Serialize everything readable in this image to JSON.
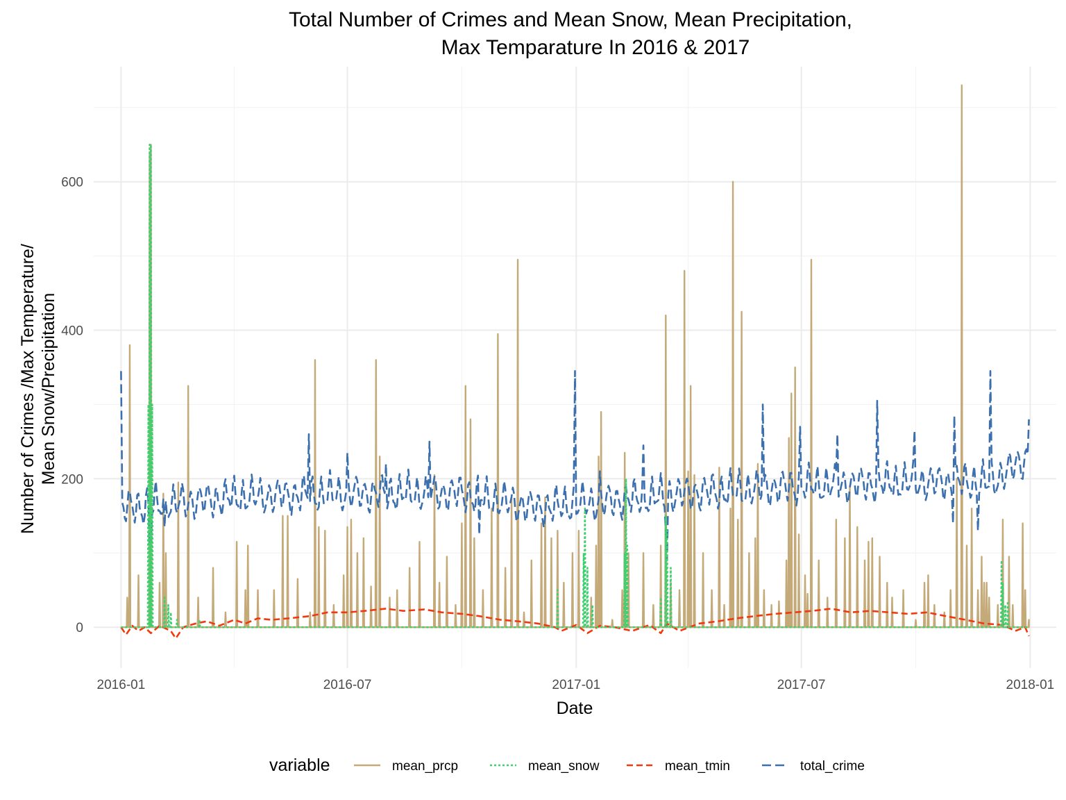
{
  "chart_data": {
    "type": "line",
    "title": [
      "Total Number of Crimes and Mean Snow, Mean Precipitation,",
      "Max Temparature In 2016 & 2017"
    ],
    "xlabel": "Date",
    "ylabel": [
      "Number of Crimes /Max Temperature/",
      "Mean Snow/Precipitation"
    ],
    "x_range": [
      "2015-12-10",
      "2018-01-22"
    ],
    "ylim": [
      -55,
      755
    ],
    "x_ticks": [
      {
        "date": "2016-01-01",
        "label": "2016-01"
      },
      {
        "date": "2016-07-01",
        "label": "2016-07"
      },
      {
        "date": "2017-01-01",
        "label": "2017-01"
      },
      {
        "date": "2017-07-01",
        "label": "2017-07"
      },
      {
        "date": "2018-01-01",
        "label": "2018-01"
      }
    ],
    "x_minor_ticks": [
      "2016-04-01",
      "2016-10-01",
      "2017-04-01",
      "2017-10-01"
    ],
    "y_ticks": [
      0,
      200,
      400,
      600
    ],
    "y_minor_ticks": [
      100,
      300,
      500,
      700
    ],
    "grid": true,
    "legend": {
      "title": "variable",
      "position": "bottom"
    },
    "series": [
      {
        "name": "mean_prcp",
        "color": "#c4aa78",
        "dash": "solid",
        "baseline": 0,
        "x_start": "2016-01-01",
        "x_end": "2017-12-31",
        "peaks": [
          [
            "2016-01-06",
            40
          ],
          [
            "2016-01-08",
            380
          ],
          [
            "2016-01-15",
            70
          ],
          [
            "2016-01-24",
            640
          ],
          [
            "2016-01-25",
            650
          ],
          [
            "2016-02-01",
            60
          ],
          [
            "2016-02-04",
            180
          ],
          [
            "2016-02-06",
            100
          ],
          [
            "2016-02-16",
            195
          ],
          [
            "2016-02-24",
            325
          ],
          [
            "2016-03-03",
            40
          ],
          [
            "2016-03-15",
            80
          ],
          [
            "2016-03-25",
            20
          ],
          [
            "2016-04-03",
            115
          ],
          [
            "2016-04-10",
            50
          ],
          [
            "2016-04-12",
            110
          ],
          [
            "2016-04-20",
            50
          ],
          [
            "2016-05-03",
            50
          ],
          [
            "2016-05-10",
            150
          ],
          [
            "2016-05-14",
            150
          ],
          [
            "2016-05-22",
            65
          ],
          [
            "2016-06-01",
            20
          ],
          [
            "2016-06-05",
            360
          ],
          [
            "2016-06-08",
            135
          ],
          [
            "2016-06-13",
            130
          ],
          [
            "2016-06-20",
            30
          ],
          [
            "2016-06-28",
            70
          ],
          [
            "2016-07-01",
            135
          ],
          [
            "2016-07-04",
            145
          ],
          [
            "2016-07-09",
            100
          ],
          [
            "2016-07-14",
            120
          ],
          [
            "2016-07-20",
            55
          ],
          [
            "2016-07-24",
            360
          ],
          [
            "2016-07-27",
            230
          ],
          [
            "2016-08-04",
            40
          ],
          [
            "2016-08-10",
            50
          ],
          [
            "2016-08-20",
            80
          ],
          [
            "2016-08-28",
            115
          ],
          [
            "2016-09-09",
            205
          ],
          [
            "2016-09-13",
            60
          ],
          [
            "2016-09-19",
            95
          ],
          [
            "2016-09-26",
            30
          ],
          [
            "2016-10-01",
            140
          ],
          [
            "2016-10-04",
            325
          ],
          [
            "2016-10-08",
            280
          ],
          [
            "2016-10-11",
            120
          ],
          [
            "2016-10-18",
            50
          ],
          [
            "2016-10-25",
            160
          ],
          [
            "2016-10-30",
            395
          ],
          [
            "2016-11-05",
            80
          ],
          [
            "2016-11-10",
            175
          ],
          [
            "2016-11-15",
            495
          ],
          [
            "2016-11-20",
            20
          ],
          [
            "2016-11-26",
            90
          ],
          [
            "2016-12-04",
            140
          ],
          [
            "2016-12-07",
            175
          ],
          [
            "2016-12-12",
            120
          ],
          [
            "2016-12-17",
            130
          ],
          [
            "2016-12-22",
            60
          ],
          [
            "2016-12-29",
            100
          ],
          [
            "2017-01-03",
            130
          ],
          [
            "2017-01-13",
            40
          ],
          [
            "2017-01-17",
            110
          ],
          [
            "2017-01-19",
            230
          ],
          [
            "2017-01-21",
            290
          ],
          [
            "2017-01-30",
            10
          ],
          [
            "2017-02-07",
            50
          ],
          [
            "2017-02-09",
            235
          ],
          [
            "2017-02-12",
            100
          ],
          [
            "2017-02-24",
            100
          ],
          [
            "2017-03-04",
            30
          ],
          [
            "2017-03-10",
            110
          ],
          [
            "2017-03-14",
            420
          ],
          [
            "2017-03-18",
            60
          ],
          [
            "2017-03-25",
            50
          ],
          [
            "2017-03-29",
            480
          ],
          [
            "2017-04-01",
            210
          ],
          [
            "2017-04-03",
            325
          ],
          [
            "2017-04-06",
            205
          ],
          [
            "2017-04-13",
            100
          ],
          [
            "2017-04-20",
            50
          ],
          [
            "2017-04-26",
            215
          ],
          [
            "2017-04-30",
            30
          ],
          [
            "2017-05-05",
            160
          ],
          [
            "2017-05-07",
            600
          ],
          [
            "2017-05-11",
            145
          ],
          [
            "2017-05-14",
            425
          ],
          [
            "2017-05-20",
            100
          ],
          [
            "2017-05-25",
            120
          ],
          [
            "2017-05-27",
            220
          ],
          [
            "2017-06-01",
            50
          ],
          [
            "2017-06-07",
            30
          ],
          [
            "2017-06-13",
            35
          ],
          [
            "2017-06-19",
            90
          ],
          [
            "2017-06-21",
            255
          ],
          [
            "2017-06-23",
            315
          ],
          [
            "2017-06-26",
            350
          ],
          [
            "2017-06-29",
            125
          ],
          [
            "2017-07-04",
            70
          ],
          [
            "2017-07-06",
            45
          ],
          [
            "2017-07-09",
            495
          ],
          [
            "2017-07-15",
            90
          ],
          [
            "2017-07-22",
            40
          ],
          [
            "2017-07-29",
            145
          ],
          [
            "2017-08-05",
            120
          ],
          [
            "2017-08-09",
            190
          ],
          [
            "2017-08-15",
            135
          ],
          [
            "2017-08-21",
            90
          ],
          [
            "2017-08-24",
            115
          ],
          [
            "2017-08-27",
            120
          ],
          [
            "2017-09-02",
            95
          ],
          [
            "2017-09-08",
            60
          ],
          [
            "2017-09-12",
            40
          ],
          [
            "2017-09-21",
            50
          ],
          [
            "2017-10-01",
            10
          ],
          [
            "2017-10-08",
            60
          ],
          [
            "2017-10-11",
            70
          ],
          [
            "2017-10-16",
            30
          ],
          [
            "2017-10-24",
            20
          ],
          [
            "2017-10-29",
            50
          ],
          [
            "2017-11-03",
            200
          ],
          [
            "2017-11-07",
            730
          ],
          [
            "2017-11-11",
            110
          ],
          [
            "2017-11-15",
            160
          ],
          [
            "2017-11-20",
            50
          ],
          [
            "2017-11-23",
            95
          ],
          [
            "2017-11-25",
            60
          ],
          [
            "2017-11-27",
            60
          ],
          [
            "2017-11-29",
            40
          ],
          [
            "2017-12-06",
            30
          ],
          [
            "2017-12-10",
            145
          ],
          [
            "2017-12-15",
            95
          ],
          [
            "2017-12-18",
            30
          ],
          [
            "2017-12-26",
            140
          ],
          [
            "2017-12-28",
            50
          ],
          [
            "2017-12-31",
            10
          ]
        ]
      },
      {
        "name": "mean_snow",
        "color": "#3fcf6f",
        "dash": "3,3",
        "baseline": 0,
        "x_start": "2016-01-01",
        "x_end": "2017-12-31",
        "peaks": [
          [
            "2016-01-23",
            300
          ],
          [
            "2016-01-24",
            650
          ],
          [
            "2016-01-25",
            650
          ],
          [
            "2016-01-26",
            300
          ],
          [
            "2016-02-05",
            40
          ],
          [
            "2016-02-08",
            30
          ],
          [
            "2016-02-10",
            20
          ],
          [
            "2016-02-15",
            10
          ],
          [
            "2016-03-04",
            10
          ],
          [
            "2016-12-17",
            50
          ],
          [
            "2017-01-07",
            100
          ],
          [
            "2017-01-08",
            160
          ],
          [
            "2017-01-10",
            80
          ],
          [
            "2017-01-14",
            30
          ],
          [
            "2017-02-09",
            100
          ],
          [
            "2017-02-10",
            200
          ],
          [
            "2017-02-11",
            110
          ],
          [
            "2017-03-10",
            40
          ],
          [
            "2017-03-14",
            150
          ],
          [
            "2017-03-15",
            130
          ],
          [
            "2017-03-18",
            80
          ],
          [
            "2017-12-09",
            90
          ],
          [
            "2017-12-10",
            60
          ],
          [
            "2017-12-12",
            30
          ],
          [
            "2017-12-14",
            35
          ]
        ]
      },
      {
        "name": "mean_tmin",
        "color": "#f2380f",
        "dash": "9,5",
        "x": [
          "2016-01-01",
          "2016-01-05",
          "2016-01-10",
          "2016-01-15",
          "2016-01-20",
          "2016-01-25",
          "2016-02-01",
          "2016-02-10",
          "2016-02-14",
          "2016-02-20",
          "2016-03-01",
          "2016-03-10",
          "2016-03-20",
          "2016-04-01",
          "2016-04-10",
          "2016-04-20",
          "2016-05-01",
          "2016-05-15",
          "2016-06-01",
          "2016-06-15",
          "2016-07-01",
          "2016-07-15",
          "2016-08-01",
          "2016-08-15",
          "2016-09-01",
          "2016-09-15",
          "2016-10-01",
          "2016-10-15",
          "2016-11-01",
          "2016-11-15",
          "2016-12-01",
          "2016-12-15",
          "2016-12-20",
          "2017-01-01",
          "2017-01-10",
          "2017-01-20",
          "2017-02-01",
          "2017-02-15",
          "2017-03-01",
          "2017-03-10",
          "2017-03-15",
          "2017-03-25",
          "2017-04-10",
          "2017-04-25",
          "2017-05-10",
          "2017-05-25",
          "2017-06-10",
          "2017-06-25",
          "2017-07-10",
          "2017-07-25",
          "2017-08-10",
          "2017-08-25",
          "2017-09-10",
          "2017-09-25",
          "2017-10-10",
          "2017-10-25",
          "2017-11-10",
          "2017-11-25",
          "2017-12-10",
          "2017-12-20",
          "2017-12-28",
          "2017-12-31"
        ],
        "values": [
          0,
          -10,
          2,
          -5,
          0,
          -8,
          2,
          -5,
          -15,
          0,
          5,
          8,
          2,
          10,
          5,
          12,
          10,
          12,
          15,
          20,
          20,
          22,
          25,
          22,
          24,
          20,
          18,
          15,
          10,
          8,
          5,
          0,
          -5,
          3,
          -8,
          2,
          0,
          -5,
          3,
          -8,
          5,
          -5,
          5,
          8,
          12,
          15,
          18,
          20,
          22,
          25,
          20,
          22,
          20,
          18,
          20,
          15,
          10,
          5,
          3,
          -5,
          0,
          -12
        ]
      },
      {
        "name": "total_crime",
        "color": "#3b6fae",
        "dash": "13,6",
        "base_x": [
          "2016-01-01",
          "2016-04-01",
          "2016-07-01",
          "2016-10-01",
          "2016-12-01",
          "2017-01-01",
          "2017-04-01",
          "2017-07-01",
          "2017-10-01",
          "2017-12-01",
          "2017-12-31"
        ],
        "base_y": [
          160,
          175,
          180,
          180,
          160,
          165,
          180,
          190,
          195,
          195,
          230
        ],
        "spikes": [
          [
            "2016-01-01",
            345
          ],
          [
            "2016-01-24",
            110
          ],
          [
            "2016-01-25",
            120
          ],
          [
            "2016-02-05",
            135
          ],
          [
            "2016-05-31",
            260
          ],
          [
            "2016-07-01",
            235
          ],
          [
            "2016-08-01",
            220
          ],
          [
            "2016-09-05",
            250
          ],
          [
            "2016-10-15",
            125
          ],
          [
            "2016-12-31",
            345
          ],
          [
            "2017-01-20",
            210
          ],
          [
            "2017-02-24",
            245
          ],
          [
            "2017-03-14",
            130
          ],
          [
            "2017-03-15",
            90
          ],
          [
            "2017-05-31",
            300
          ],
          [
            "2017-06-30",
            270
          ],
          [
            "2017-07-30",
            260
          ],
          [
            "2017-08-31",
            305
          ],
          [
            "2017-09-30",
            265
          ],
          [
            "2017-10-31",
            140
          ],
          [
            "2017-11-01",
            285
          ],
          [
            "2017-11-20",
            130
          ],
          [
            "2017-11-30",
            345
          ],
          [
            "2017-12-31",
            280
          ]
        ]
      }
    ]
  }
}
